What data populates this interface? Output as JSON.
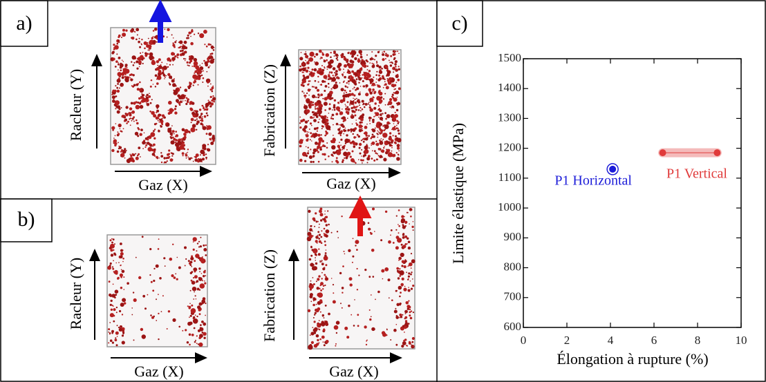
{
  "panels": {
    "a": {
      "label": "a)",
      "left": {
        "y_axis": "Racleur (Y)",
        "x_axis": "Gaz (X)"
      },
      "right": {
        "y_axis": "Fabrication (Z)",
        "x_axis": "Gaz (X)"
      }
    },
    "b": {
      "label": "b)",
      "left": {
        "y_axis": "Racleur (Y)",
        "x_axis": "Gaz (X)"
      },
      "right": {
        "y_axis": "Fabrication (Z)",
        "x_axis": "Gaz (X)"
      }
    },
    "c": {
      "label": "c)"
    }
  },
  "chart_data": {
    "type": "scatter",
    "xlabel": "Élongation à rupture (%)",
    "ylabel": "Limite élastique (MPa)",
    "xlim": [
      0,
      10
    ],
    "ylim": [
      600,
      1500
    ],
    "xticks": [
      0,
      2,
      4,
      6,
      8,
      10
    ],
    "yticks": [
      600,
      700,
      800,
      900,
      1000,
      1100,
      1200,
      1300,
      1400,
      1500
    ],
    "grid": false,
    "series": [
      {
        "name": "P1 Horizontal",
        "color": "#1c1cd8",
        "x": [
          4.1
        ],
        "values": [
          1130
        ]
      },
      {
        "name": "P1 Vertical",
        "color": "#e03a3a",
        "x": [
          6.4,
          8.9
        ],
        "values": [
          1185,
          1185
        ]
      }
    ]
  }
}
